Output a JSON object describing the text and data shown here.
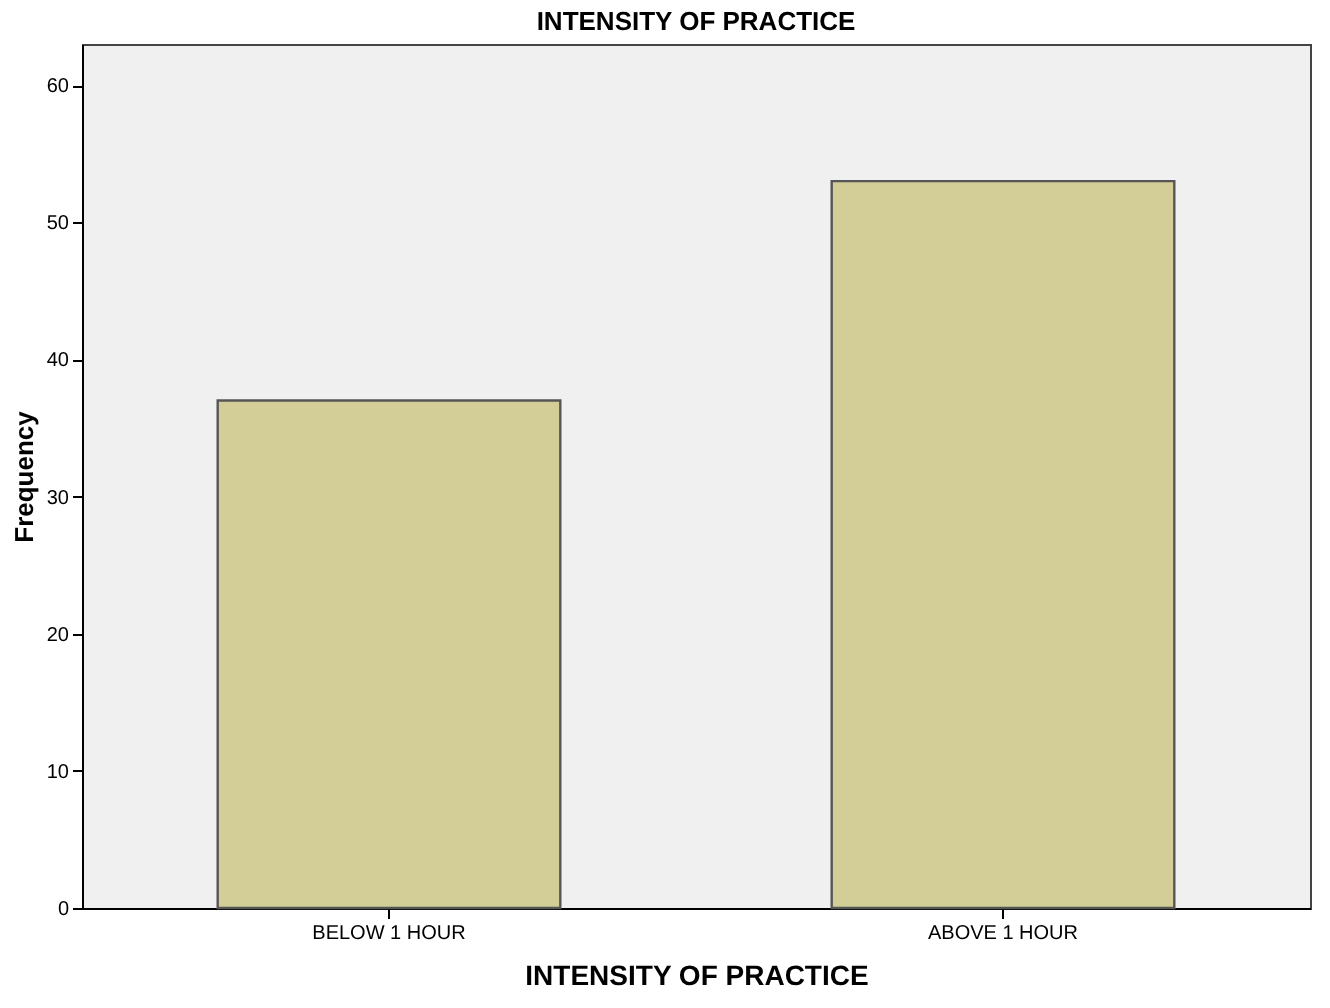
{
  "chart_data": {
    "type": "bar",
    "title": "INTENSITY OF PRACTICE",
    "xlabel": "INTENSITY OF PRACTICE",
    "ylabel": "Frequency",
    "categories": [
      "BELOW 1 HOUR",
      "ABOVE 1 HOUR"
    ],
    "series": [
      {
        "color": "#d3ce97",
        "values": [
          37,
          53
        ]
      }
    ],
    "ylim": [
      0,
      63
    ],
    "yticks": [
      0,
      10,
      20,
      30,
      40,
      50,
      60
    ],
    "grid": false
  }
}
